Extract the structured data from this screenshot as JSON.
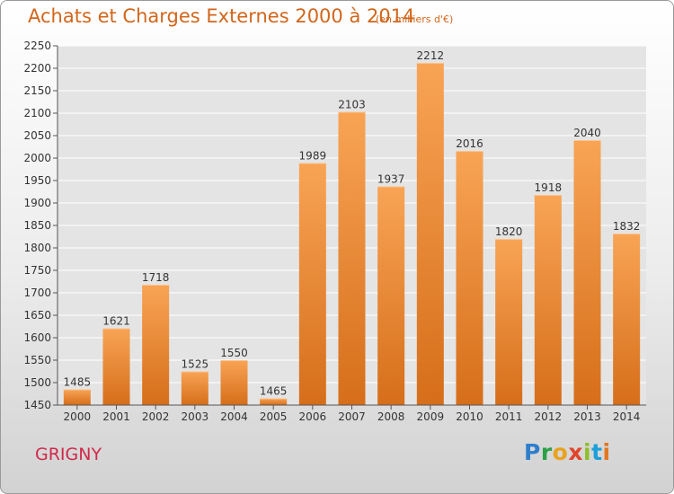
{
  "header": {
    "title": "Achats et Charges Externes 2000 à 2014",
    "subtitle": "(en milliers d'€)"
  },
  "footer": {
    "commune": "GRIGNY",
    "logo_text": "Proxiti"
  },
  "colors": {
    "bar_top": "#f8a455",
    "bar_bottom": "#d66e1a",
    "title": "#d2661c",
    "commune": "#d0294a",
    "grid": "#ffffff"
  },
  "chart_data": {
    "type": "bar",
    "title": "Achats et Charges Externes 2000 à 2014",
    "subtitle": "(en milliers d'€)",
    "categories": [
      "2000",
      "2001",
      "2002",
      "2003",
      "2004",
      "2005",
      "2006",
      "2007",
      "2008",
      "2009",
      "2010",
      "2011",
      "2012",
      "2013",
      "2014"
    ],
    "values": [
      1485,
      1621,
      1718,
      1525,
      1550,
      1465,
      1989,
      2103,
      1937,
      2212,
      2016,
      1820,
      1918,
      2040,
      1832
    ],
    "ylim": [
      1450,
      2250
    ],
    "yticks": [
      1450,
      1500,
      1550,
      1600,
      1650,
      1700,
      1750,
      1800,
      1850,
      1900,
      1950,
      2000,
      2050,
      2100,
      2150,
      2200,
      2250
    ],
    "xlabel": "",
    "ylabel": "",
    "grid": true,
    "data_labels": true
  }
}
